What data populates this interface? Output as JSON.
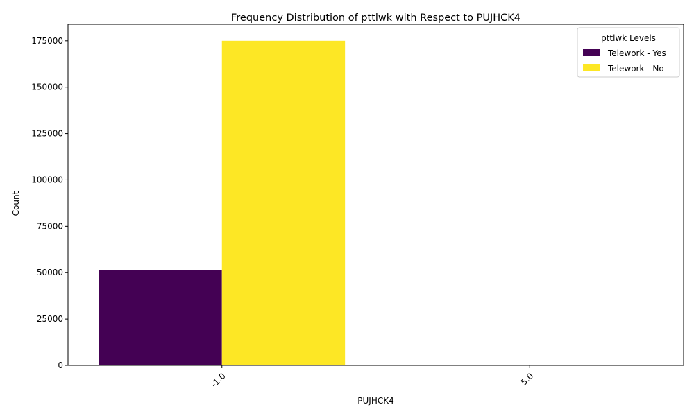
{
  "chart_data": {
    "type": "bar",
    "title": "Frequency Distribution of pttlwk with Respect to PUJHCK4",
    "xlabel": "PUJHCK4",
    "ylabel": "Count",
    "categories": [
      "-1.0",
      "5.0"
    ],
    "series": [
      {
        "name": "Telework - Yes",
        "color": "#440154",
        "values": [
          51500,
          0
        ]
      },
      {
        "name": "Telework - No",
        "color": "#fde725",
        "values": [
          175000,
          0
        ]
      }
    ],
    "ylim": [
      0,
      183900
    ],
    "yticks": [
      0,
      25000,
      50000,
      75000,
      100000,
      125000,
      150000,
      175000
    ],
    "legend": {
      "title": "pttlwk Levels",
      "position": "top-right"
    },
    "grid": false,
    "xtick_rotation": 45
  }
}
